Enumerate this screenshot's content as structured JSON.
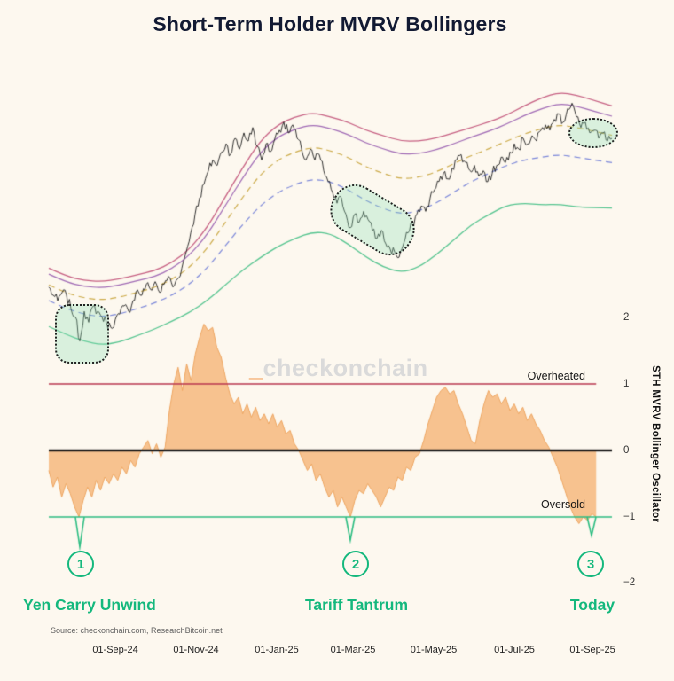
{
  "chart_data": {
    "type": "line",
    "title": "Short-Term Holder MVRV Bollingers",
    "source": "Source: checkonchain.com, ResearchBitcoin.net",
    "watermark": {
      "prefix": "_",
      "name": "checkonchain"
    },
    "x_ticks": [
      "01-Sep-24",
      "01-Nov-24",
      "01-Jan-25",
      "01-Mar-25",
      "01-May-25",
      "01-Jul-25",
      "01-Sep-25"
    ],
    "colors": {
      "background": "#fdf8ef",
      "title": "#121a33",
      "annotation": "#14b87d",
      "watermark": "#dadada",
      "watermark_accent": "#f49b53",
      "highlight_border": "#222222",
      "highlight_fill": "rgba(137,221,178,0.30)"
    },
    "price_panel": {
      "ylim": [
        0,
        100
      ],
      "series": [
        {
          "name": "upper-band-outer",
          "color": "#c65f82",
          "dash": false,
          "width": 1.3,
          "values": [
            32,
            29,
            27.5,
            27,
            28,
            29.5,
            31,
            34,
            39,
            47,
            58,
            69,
            79,
            85,
            88,
            89.5,
            88,
            86,
            83,
            81,
            79,
            79,
            80,
            82,
            84,
            86,
            88.5,
            92,
            95,
            97,
            96,
            94,
            92
          ]
        },
        {
          "name": "upper-band-purple",
          "color": "#a06ab5",
          "dash": false,
          "width": 1.2,
          "values": [
            29.8,
            26.8,
            25.3,
            24.7,
            25.7,
            27.3,
            28.8,
            31.8,
            36.7,
            44.3,
            54.8,
            65.2,
            74.7,
            80.5,
            83.5,
            85.1,
            83.7,
            81.5,
            78.3,
            76.1,
            74.1,
            74.3,
            75.7,
            78,
            80.4,
            82.6,
            85.2,
            88.4,
            91,
            92.9,
            91.9,
            90,
            88.2
          ]
        },
        {
          "name": "upper-band-inner",
          "color": "#ccab4a",
          "dash": true,
          "width": 1.2,
          "values": [
            25.8,
            22.8,
            21,
            20.2,
            21.2,
            23,
            24.8,
            27.8,
            32.2,
            39.2,
            48.6,
            58.1,
            66.5,
            72,
            75,
            76.8,
            75.5,
            73,
            69.5,
            67,
            65,
            65.5,
            67.5,
            70.6,
            73.6,
            76.1,
            78.9,
            81.6,
            83.6,
            85,
            84,
            82.6,
            81.1
          ]
        },
        {
          "name": "mean-band",
          "color": "#7b87d9",
          "dash": true,
          "width": 1.2,
          "values": [
            20,
            17,
            15,
            14,
            15,
            17,
            19,
            22,
            26,
            32,
            40,
            48,
            55,
            60,
            63,
            65,
            64,
            61,
            57,
            54,
            52,
            53,
            56,
            60,
            64,
            67,
            70,
            72,
            73,
            74,
            73,
            72,
            71
          ]
        },
        {
          "name": "lower-band",
          "color": "#54c48f",
          "dash": false,
          "width": 1.3,
          "values": [
            10.4,
            7.4,
            5,
            3.6,
            4.6,
            7,
            9.4,
            12.4,
            15.6,
            20,
            25.6,
            31.2,
            35.8,
            40,
            43,
            45.4,
            44.8,
            41,
            36.2,
            32.4,
            30.4,
            32.2,
            36.8,
            42.4,
            48,
            51.8,
            55.2,
            56,
            55.4,
            55.6,
            54.6,
            54.4,
            54.2
          ]
        }
      ],
      "price": {
        "name": "btc-price",
        "color": "#1b1b1b",
        "width": 0.9,
        "jitter": 1.8,
        "values": [
          25,
          22,
          20,
          23,
          22,
          17,
          14,
          5,
          16,
          12,
          18,
          16,
          14,
          12,
          10,
          13,
          15,
          18,
          16,
          20,
          24,
          22,
          26,
          24,
          27,
          23,
          26,
          29,
          25,
          28,
          32,
          38,
          45,
          52,
          58,
          63,
          68,
          72,
          70,
          75,
          78,
          74,
          80,
          76,
          82,
          79,
          84,
          77,
          72,
          78,
          75,
          80,
          83,
          86,
          82,
          85,
          80,
          76,
          72,
          76,
          72,
          74,
          68,
          64,
          60,
          56,
          58,
          52,
          47,
          52,
          49,
          53,
          50,
          46,
          43,
          46,
          41,
          39,
          38,
          36,
          41,
          45,
          48,
          52,
          55,
          53,
          58,
          61,
          64,
          67,
          65,
          69,
          72,
          74,
          71,
          68,
          70,
          66,
          68,
          64,
          67,
          70,
          73,
          71,
          75,
          78,
          76,
          80,
          78,
          81,
          79,
          83,
          85,
          83,
          87,
          89,
          86,
          91,
          93,
          88,
          84,
          86,
          82,
          83,
          80,
          82,
          79,
          80
        ]
      }
    },
    "oscillator": {
      "axis_label": "STH MVRV Bollinger Oscillator",
      "ylim": [
        -2,
        2
      ],
      "ticks": [
        "2",
        "1",
        "0",
        "−1",
        "−2"
      ],
      "fill": "#f6b97e",
      "stroke": "#eda45f",
      "x_end": 0.972,
      "thresholds": [
        {
          "y": 1,
          "color": "#b8374f",
          "label": "Overheated",
          "x_end": 0.972
        },
        {
          "y": 0,
          "color": "#1a1a1a"
        },
        {
          "y": -1,
          "color": "#2dbd82",
          "label": "Oversold"
        }
      ],
      "spikes": [
        {
          "x": 0.0551,
          "v": -1.45
        },
        {
          "x": 0.5354,
          "v": -1.35
        },
        {
          "x": 0.9638,
          "v": -1.28
        }
      ],
      "values": [
        -0.3,
        -0.55,
        -0.4,
        -0.7,
        -0.5,
        -0.65,
        -0.85,
        -1.0,
        -0.75,
        -0.55,
        -0.7,
        -0.45,
        -0.6,
        -0.4,
        -0.5,
        -0.35,
        -0.45,
        -0.25,
        -0.35,
        -0.15,
        -0.25,
        -0.05,
        0.05,
        0.15,
        -0.05,
        0.1,
        -0.1,
        0.05,
        0.6,
        1.0,
        1.25,
        0.9,
        1.3,
        1.05,
        1.45,
        1.7,
        1.9,
        1.8,
        1.85,
        1.55,
        1.4,
        1.1,
        0.85,
        0.7,
        0.8,
        0.55,
        0.7,
        0.5,
        0.65,
        0.45,
        0.55,
        0.4,
        0.55,
        0.35,
        0.45,
        0.25,
        0.3,
        0.1,
        0.0,
        -0.15,
        -0.3,
        -0.2,
        -0.45,
        -0.35,
        -0.55,
        -0.7,
        -0.6,
        -0.85,
        -0.7,
        -0.85,
        -1.0,
        -0.75,
        -0.6,
        -0.65,
        -0.5,
        -0.6,
        -0.7,
        -0.85,
        -0.7,
        -0.55,
        -0.6,
        -0.4,
        -0.45,
        -0.25,
        -0.3,
        -0.1,
        -0.05,
        0.15,
        0.4,
        0.6,
        0.8,
        0.9,
        0.95,
        0.85,
        0.9,
        0.7,
        0.55,
        0.35,
        0.15,
        0.1,
        0.45,
        0.7,
        0.9,
        0.8,
        0.85,
        0.7,
        0.8,
        0.6,
        0.7,
        0.55,
        0.65,
        0.45,
        0.55,
        0.4,
        0.3,
        0.15,
        0.05,
        -0.1,
        -0.25,
        -0.45,
        -0.65,
        -0.85,
        -1.0,
        -1.1,
        -1.0,
        -1.05,
        -0.95,
        -1.0
      ]
    },
    "annotations": [
      {
        "num": "1",
        "label": "Yen Carry Unwind"
      },
      {
        "num": "2",
        "label": "Tariff Tantrum"
      },
      {
        "num": "3",
        "label": "Today"
      }
    ]
  }
}
